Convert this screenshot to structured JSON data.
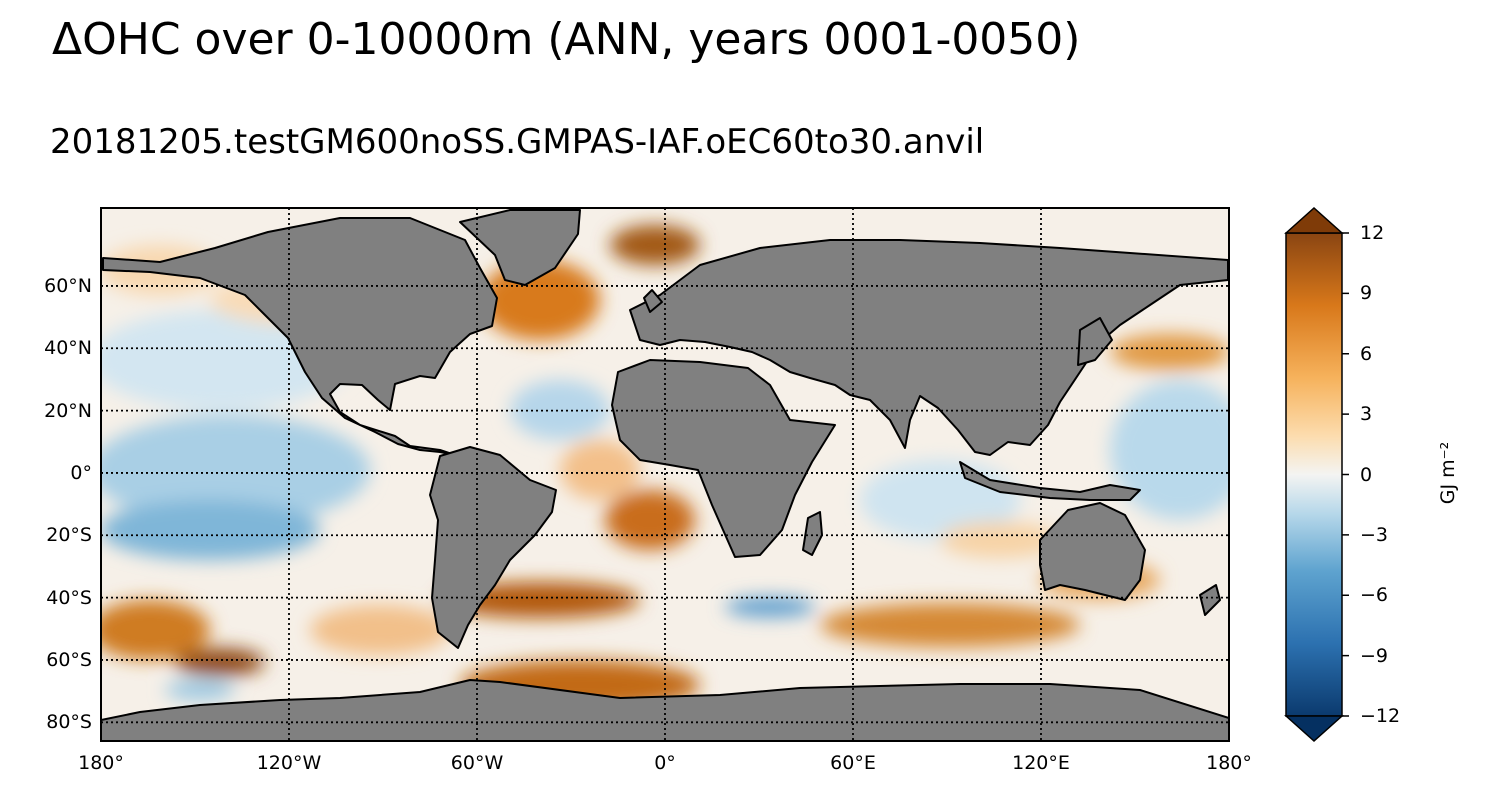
{
  "title": "ΔOHC over 0-10000m (ANN, years 0001-0050)",
  "subtitle": "20181205.testGM600noSS.GMPAS-IAF.oEC60to30.anvil",
  "map": {
    "projection": "PlateCarree",
    "lat_ticks": [
      {
        "value": 60,
        "label": "60°N"
      },
      {
        "value": 40,
        "label": "40°N"
      },
      {
        "value": 20,
        "label": "20°N"
      },
      {
        "value": 0,
        "label": "0°"
      },
      {
        "value": -20,
        "label": "20°S"
      },
      {
        "value": -40,
        "label": "40°S"
      },
      {
        "value": -60,
        "label": "60°S"
      },
      {
        "value": -80,
        "label": "80°S"
      }
    ],
    "lon_ticks": [
      {
        "value": -180,
        "label": "180°"
      },
      {
        "value": -120,
        "label": "120°W"
      },
      {
        "value": -60,
        "label": "60°W"
      },
      {
        "value": 0,
        "label": "0°"
      },
      {
        "value": 60,
        "label": "60°E"
      },
      {
        "value": 120,
        "label": "120°E"
      },
      {
        "value": 180,
        "label": "180°"
      }
    ],
    "land_color": "#808080",
    "gridline_style": "dotted"
  },
  "colorbar": {
    "unit_label": "GJ m⁻²",
    "range": [
      -12,
      12
    ],
    "ticks": [
      {
        "value": 12,
        "label": "12"
      },
      {
        "value": 9,
        "label": "9"
      },
      {
        "value": 6,
        "label": "6"
      },
      {
        "value": 3,
        "label": "3"
      },
      {
        "value": 0,
        "label": "0"
      },
      {
        "value": -3,
        "label": "−3"
      },
      {
        "value": -6,
        "label": "−6"
      },
      {
        "value": -9,
        "label": "−9"
      },
      {
        "value": -12,
        "label": "−12"
      }
    ],
    "colors": [
      "#053061",
      "#2166ac",
      "#4393c3",
      "#92c5de",
      "#d1e5f0",
      "#f5f5f5",
      "#fee0b6",
      "#fdb863",
      "#e08214",
      "#b35806",
      "#7f3b08"
    ]
  }
}
